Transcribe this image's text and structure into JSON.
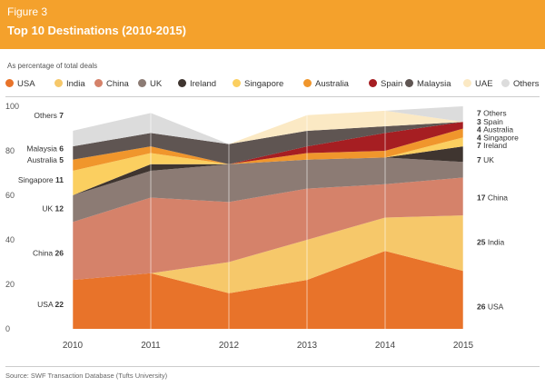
{
  "figure_label": "Figure 3",
  "title": "Top 10 Destinations (2010-2015)",
  "subtitle": "As percentage of total deals",
  "source": "Source: SWF Transaction Database (Tufts University)",
  "chart_data": {
    "type": "area",
    "stacked": true,
    "title": "Top 10 Destinations (2010-2015)",
    "ylabel": "As percentage of total deals",
    "xlabel": "",
    "x": [
      "2010",
      "2011",
      "2012",
      "2013",
      "2014",
      "2015"
    ],
    "ylim": [
      0,
      100
    ],
    "yticks": [
      "0",
      "20",
      "40",
      "60",
      "80",
      "100"
    ],
    "series": [
      {
        "name": "USA",
        "color": "#e8732a",
        "values": [
          22,
          25,
          16,
          22,
          35,
          26
        ]
      },
      {
        "name": "India",
        "color": "#f6c86a",
        "values": [
          0,
          0,
          14,
          18,
          15,
          25
        ]
      },
      {
        "name": "China",
        "color": "#d5826a",
        "values": [
          26,
          34,
          27,
          23,
          15,
          17
        ]
      },
      {
        "name": "UK",
        "color": "#8c7b74",
        "values": [
          12,
          12,
          17,
          13,
          12,
          7
        ]
      },
      {
        "name": "Ireland",
        "color": "#3f3530",
        "values": [
          0,
          3,
          0,
          0,
          0,
          7
        ]
      },
      {
        "name": "Singapore",
        "color": "#fbcf60",
        "values": [
          11,
          5,
          0,
          0,
          0,
          4
        ]
      },
      {
        "name": "Australia",
        "color": "#f0962c",
        "values": [
          5,
          3,
          0,
          3,
          3,
          4
        ]
      },
      {
        "name": "Spain",
        "color": "#a61e22",
        "values": [
          0,
          0,
          0,
          3,
          8,
          3
        ]
      },
      {
        "name": "Malaysia",
        "color": "#5f5552",
        "values": [
          6,
          6,
          9,
          7,
          3,
          0
        ]
      },
      {
        "name": "UAE",
        "color": "#fbe9c4",
        "values": [
          0,
          0,
          0,
          7,
          7,
          0
        ]
      },
      {
        "name": "Others",
        "color": "#dcdcdc",
        "values": [
          7,
          9,
          0,
          0,
          0,
          7
        ]
      }
    ],
    "left_labels": [
      {
        "name": "Others",
        "value": "7"
      },
      {
        "name": "Malaysia",
        "value": "6"
      },
      {
        "name": "Australia",
        "value": "5"
      },
      {
        "name": "Singapore",
        "value": "11"
      },
      {
        "name": "UK",
        "value": "12"
      },
      {
        "name": "China",
        "value": "26"
      },
      {
        "name": "USA",
        "value": "22"
      }
    ],
    "right_labels": [
      {
        "value": "7",
        "name": "Others"
      },
      {
        "value": "3",
        "name": "Spain"
      },
      {
        "value": "4",
        "name": "Australia"
      },
      {
        "value": "4",
        "name": "Singapore"
      },
      {
        "value": "7",
        "name": "Ireland"
      },
      {
        "value": "7",
        "name": "UK"
      },
      {
        "value": "17",
        "name": "China"
      },
      {
        "value": "25",
        "name": "India"
      },
      {
        "value": "26",
        "name": "USA"
      }
    ]
  }
}
